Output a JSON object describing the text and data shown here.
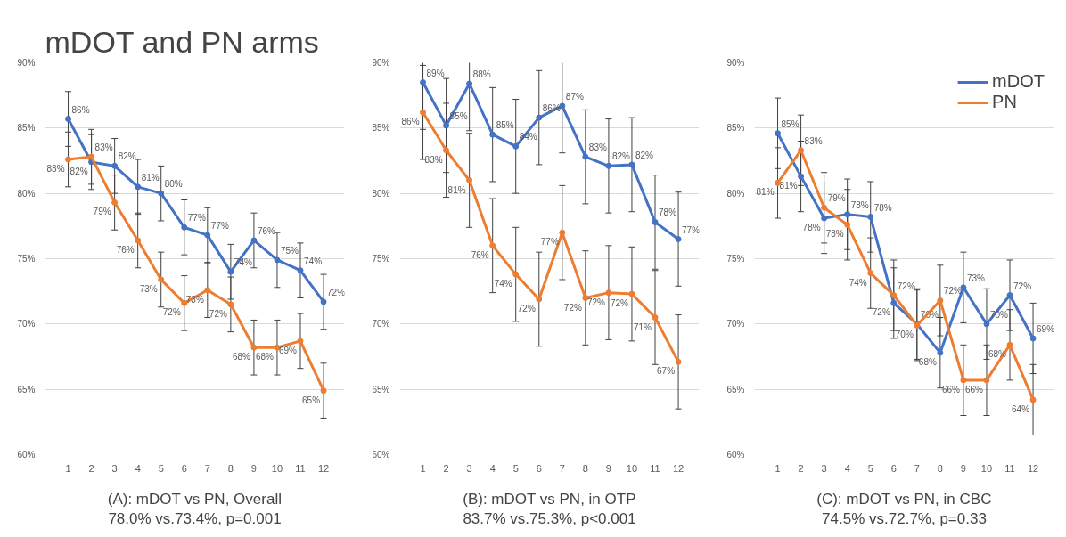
{
  "chart_data": [
    {
      "type": "line",
      "title": "mDOT and PN arms",
      "xlabel": "(A): mDOT vs PN, Overall\n78.0% vs.73.4%, p=0.001",
      "x": [
        1,
        2,
        3,
        4,
        5,
        6,
        7,
        8,
        9,
        10,
        11,
        12
      ],
      "xlim": [
        0,
        12.9
      ],
      "xticks": [
        1,
        2,
        3,
        4,
        5,
        6,
        7,
        8,
        9,
        10,
        11,
        12
      ],
      "ylim": [
        60,
        90
      ],
      "yticks": [
        {
          "value": 60,
          "label": "60%"
        },
        {
          "value": 65,
          "label": "65%"
        },
        {
          "value": 70,
          "label": "70%"
        },
        {
          "value": 75,
          "label": "75%"
        },
        {
          "value": 80,
          "label": "80%"
        },
        {
          "value": 85,
          "label": "85%"
        },
        {
          "value": 90,
          "label": "90%"
        }
      ],
      "grid": "y",
      "marker": "circle",
      "line_style": "solid",
      "series": [
        {
          "color": "#4472c4",
          "values": [
            85.7,
            82.4,
            82.1,
            80.5,
            80.0,
            77.4,
            76.8,
            74.0,
            76.4,
            74.9,
            74.1,
            71.7
          ],
          "errors": [
            2.1,
            2.1,
            2.1,
            2.1,
            2.1,
            2.1,
            2.1,
            2.1,
            2.1,
            2.1,
            2.1,
            2.1
          ],
          "value_labels": [
            "86%",
            "82%",
            "82%",
            "81%",
            "80%",
            "77%",
            "77%",
            "74%",
            "76%",
            "75%",
            "74%",
            "72%"
          ]
        },
        {
          "color": "#ed7d31",
          "values": [
            82.6,
            82.8,
            79.3,
            76.4,
            73.4,
            71.6,
            72.6,
            71.5,
            68.2,
            68.2,
            68.7,
            64.9
          ],
          "errors": [
            2.1,
            2.1,
            2.1,
            2.1,
            2.1,
            2.1,
            2.1,
            2.1,
            2.1,
            2.1,
            2.1,
            2.1
          ],
          "value_labels": [
            "83%",
            "83%",
            "79%",
            "76%",
            "73%",
            "72%",
            "73%",
            "72%",
            "68%",
            "68%",
            "69%",
            "65%"
          ]
        }
      ]
    },
    {
      "type": "line",
      "xlabel": "(B): mDOT vs PN, in OTP\n83.7% vs.75.3%, p<0.001",
      "x": [
        1,
        2,
        3,
        4,
        5,
        6,
        7,
        8,
        9,
        10,
        11,
        12
      ],
      "xlim": [
        0,
        12.9
      ],
      "xticks": [
        1,
        2,
        3,
        4,
        5,
        6,
        7,
        8,
        9,
        10,
        11,
        12
      ],
      "ylim": [
        60,
        90
      ],
      "yticks": [
        {
          "value": 60,
          "label": "60%"
        },
        {
          "value": 65,
          "label": "65%"
        },
        {
          "value": 70,
          "label": "70%"
        },
        {
          "value": 75,
          "label": "75%"
        },
        {
          "value": 80,
          "label": "80%"
        },
        {
          "value": 85,
          "label": "85%"
        },
        {
          "value": 90,
          "label": "90%"
        }
      ],
      "grid": "y",
      "marker": "circle",
      "line_style": "solid",
      "series": [
        {
          "color": "#4472c4",
          "values": [
            88.5,
            85.2,
            88.4,
            84.5,
            83.6,
            85.8,
            86.7,
            82.8,
            82.1,
            82.2,
            77.8,
            76.5
          ],
          "errors": [
            3.6,
            3.6,
            3.6,
            3.6,
            3.6,
            3.6,
            3.6,
            3.6,
            3.6,
            3.6,
            3.6,
            3.6
          ],
          "value_labels": [
            "89%",
            "85%",
            "88%",
            "85%",
            "84%",
            "86%",
            "87%",
            "83%",
            "82%",
            "82%",
            "78%",
            "77%"
          ]
        },
        {
          "color": "#ed7d31",
          "values": [
            86.2,
            83.3,
            81.0,
            76.0,
            73.8,
            71.9,
            77.0,
            72.0,
            72.4,
            72.3,
            70.5,
            67.1
          ],
          "errors": [
            3.6,
            3.6,
            3.6,
            3.6,
            3.6,
            3.6,
            3.6,
            3.6,
            3.6,
            3.6,
            3.6,
            3.6
          ],
          "value_labels": [
            "86%",
            "83%",
            "81%",
            "76%",
            "74%",
            "72%",
            "77%",
            "72%",
            "72%",
            "72%",
            "71%",
            "67%"
          ]
        }
      ]
    },
    {
      "type": "line",
      "xlabel": "(C): mDOT vs PN, in CBC\n74.5% vs.72.7%, p=0.33",
      "x": [
        1,
        2,
        3,
        4,
        5,
        6,
        7,
        8,
        9,
        10,
        11,
        12
      ],
      "xlim": [
        0,
        12.9
      ],
      "xticks": [
        1,
        2,
        3,
        4,
        5,
        6,
        7,
        8,
        9,
        10,
        11,
        12
      ],
      "ylim": [
        60,
        90
      ],
      "yticks": [
        {
          "value": 60,
          "label": "60%"
        },
        {
          "value": 65,
          "label": "65%"
        },
        {
          "value": 70,
          "label": "70%"
        },
        {
          "value": 75,
          "label": "75%"
        },
        {
          "value": 80,
          "label": "80%"
        },
        {
          "value": 85,
          "label": "85%"
        },
        {
          "value": 90,
          "label": "90%"
        }
      ],
      "grid": "y",
      "marker": "circle",
      "line_style": "solid",
      "legend": "top right",
      "series": [
        {
          "name": "mDOT",
          "color": "#4472c4",
          "values": [
            84.6,
            81.3,
            78.1,
            78.4,
            78.2,
            71.6,
            70.0,
            67.8,
            72.8,
            70.0,
            72.2,
            68.9
          ],
          "errors": [
            2.7,
            2.7,
            2.7,
            2.7,
            2.7,
            2.7,
            2.7,
            2.7,
            2.7,
            2.7,
            2.7,
            2.7
          ],
          "value_labels": [
            "85%",
            "81%",
            "78%",
            "78%",
            "78%",
            "72%",
            "70%",
            "68%",
            "73%",
            "70%",
            "72%",
            "69%"
          ]
        },
        {
          "name": "PN",
          "color": "#ed7d31",
          "values": [
            80.8,
            83.3,
            78.9,
            77.6,
            73.9,
            72.2,
            69.9,
            71.8,
            65.7,
            65.7,
            68.4,
            64.2
          ],
          "errors": [
            2.7,
            2.7,
            2.7,
            2.7,
            2.7,
            2.7,
            2.7,
            2.7,
            2.7,
            2.7,
            2.7,
            2.7
          ],
          "value_labels": [
            "81%",
            "83%",
            "79%",
            "78%",
            "74%",
            "72%",
            "70%",
            "72%",
            "66%",
            "66%",
            "68%",
            "64%"
          ]
        }
      ]
    }
  ]
}
